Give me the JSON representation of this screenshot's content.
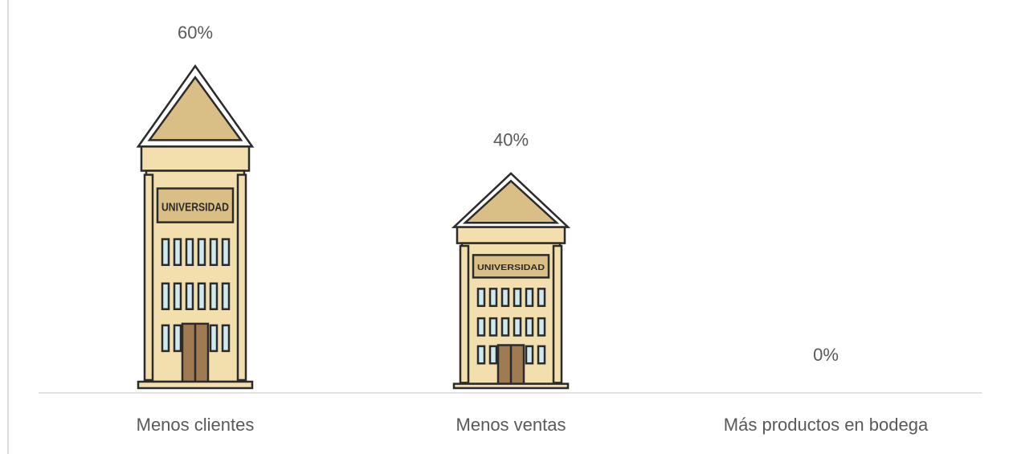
{
  "chart_data": {
    "type": "pictograph",
    "categories": [
      "Menos clientes",
      "Menos ventas",
      "Más productos en bodega"
    ],
    "values": [
      60,
      40,
      0
    ],
    "value_labels": [
      "60%",
      "40%",
      "0%"
    ],
    "pictogram_label": "UNIVERSIDAD",
    "color": "#f3dfae"
  }
}
